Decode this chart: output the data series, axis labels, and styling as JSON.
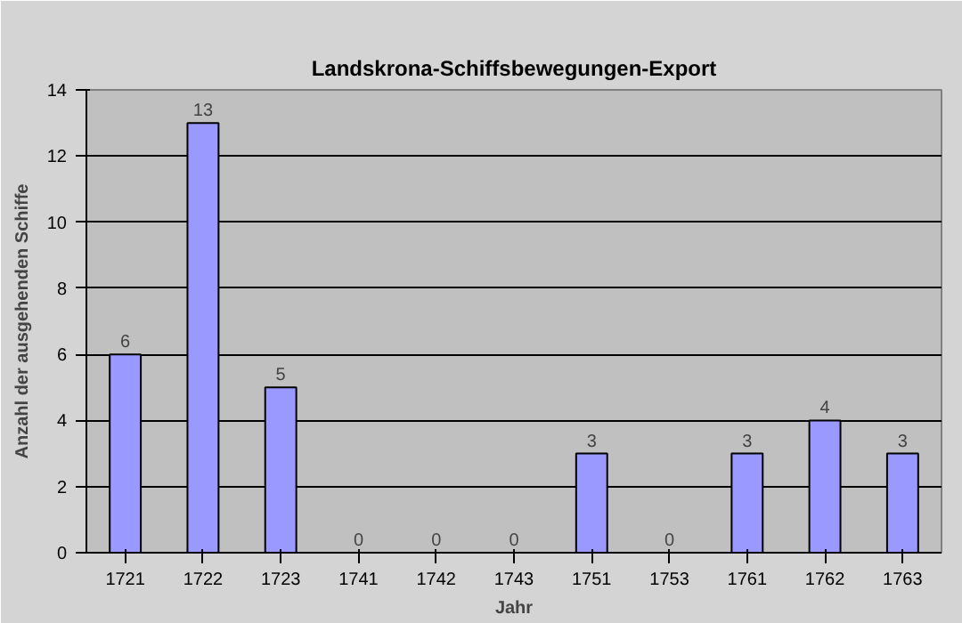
{
  "chart_data": {
    "type": "bar",
    "title": "Landskrona-Schiffsbewegungen-Export",
    "xlabel": "Jahr",
    "ylabel": "Anzahl der ausgehenden Schiffe",
    "categories": [
      "1721",
      "1722",
      "1723",
      "1741",
      "1742",
      "1743",
      "1751",
      "1753",
      "1761",
      "1762",
      "1763"
    ],
    "values": [
      6,
      13,
      5,
      0,
      0,
      0,
      3,
      0,
      3,
      4,
      3
    ],
    "color": "#9999ff",
    "ylim": [
      0,
      14
    ],
    "yticks": [
      0,
      2,
      4,
      6,
      8,
      10,
      12,
      14
    ],
    "grid": "y",
    "data_labels": true
  }
}
